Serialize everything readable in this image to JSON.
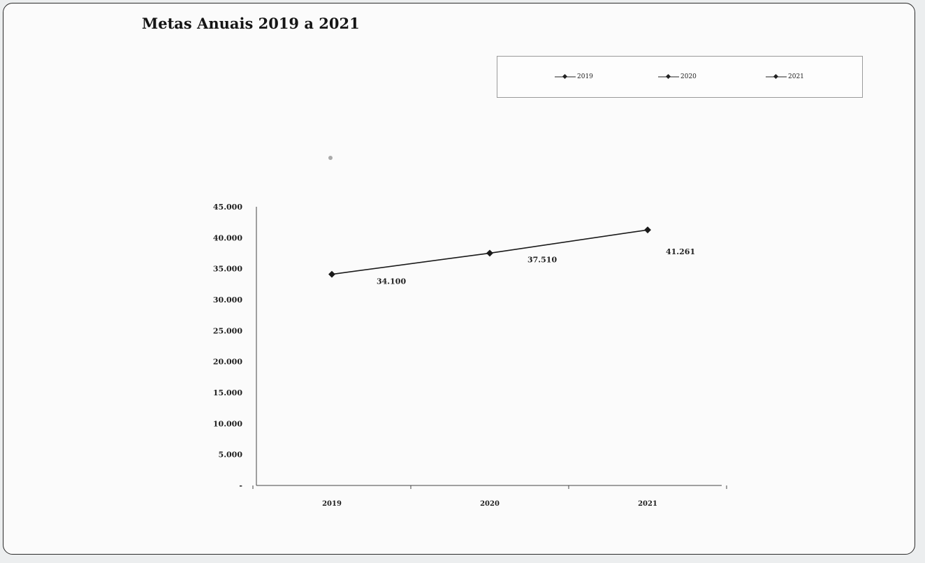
{
  "chart_data": {
    "type": "line",
    "title": "Metas Anuais 2019 a 2021",
    "categories": [
      "2019",
      "2020",
      "2021"
    ],
    "series": [
      {
        "values": [
          34100,
          37510,
          41261
        ],
        "data_labels": [
          "34.100",
          "37.510",
          "41.261"
        ]
      }
    ],
    "y_ticks": [
      "45.000",
      "40.000",
      "35.000",
      "30.000",
      "25.000",
      "20.000",
      "15.000",
      "10.000",
      "5.000",
      "-"
    ],
    "ylim": [
      0,
      45000
    ],
    "legend": {
      "placement": "top-right",
      "entries": [
        "2019",
        "2020",
        "2021"
      ]
    },
    "grid": false,
    "colors": {
      "line": "#1a1a1a",
      "axis": "#444444",
      "text": "#1f1f1f"
    }
  }
}
